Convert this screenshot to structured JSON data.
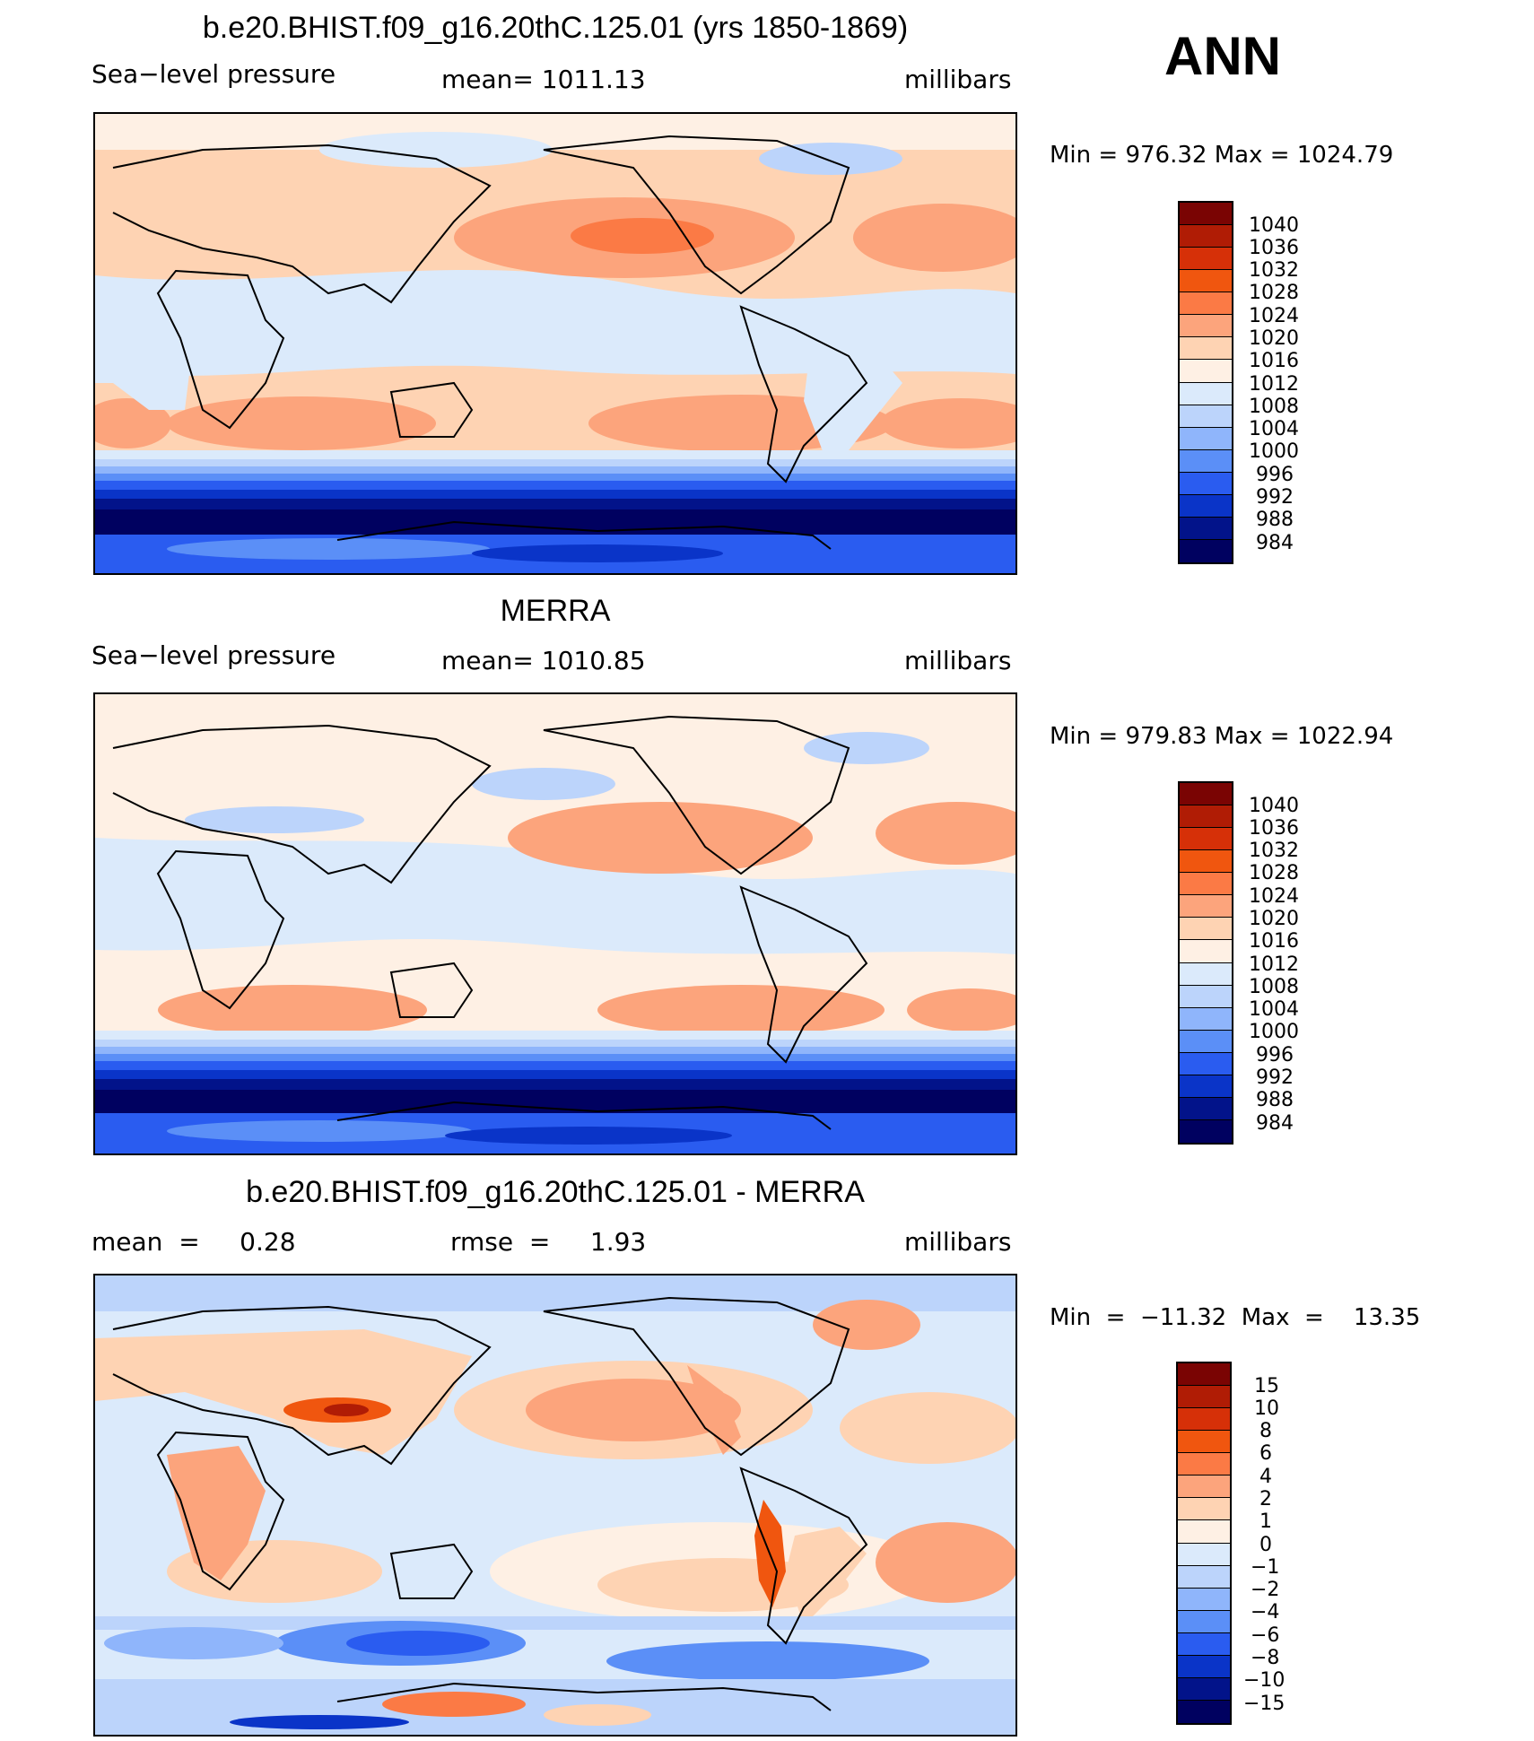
{
  "season": "ANN",
  "units": "millibars",
  "panels": [
    {
      "title": "b.e20.BHIST.f09_g16.20thC.125.01 (yrs 1850-1869)",
      "left_label": "Sea−level pressure",
      "center_label": "mean=  1011.13",
      "right_label": "millibars",
      "minmax": "Min  =  976.32  Max  =  1024.79",
      "colorbar_labels": [
        "1040",
        "1036",
        "1032",
        "1028",
        "1024",
        "1020",
        "1016",
        "1012",
        "1008",
        "1004",
        "1000",
        "996",
        "992",
        "988",
        "984"
      ]
    },
    {
      "title": "MERRA",
      "left_label": "Sea−level pressure",
      "center_label": "mean=  1010.85",
      "right_label": "millibars",
      "minmax": "Min  =  979.83  Max  =  1022.94",
      "colorbar_labels": [
        "1040",
        "1036",
        "1032",
        "1028",
        "1024",
        "1020",
        "1016",
        "1012",
        "1008",
        "1004",
        "1000",
        "996",
        "992",
        "988",
        "984"
      ]
    },
    {
      "title": "b.e20.BHIST.f09_g16.20thC.125.01 - MERRA",
      "left_label": "mean  =     0.28",
      "center_label": "rmse  =     1.93",
      "right_label": "millibars",
      "minmax": "Min  =  −11.32  Max  =    13.35",
      "colorbar_labels": [
        "15",
        "10",
        "8",
        "6",
        "4",
        "2",
        "1",
        "0",
        "−1",
        "−2",
        "−4",
        "−6",
        "−8",
        "−10",
        "−15"
      ]
    }
  ],
  "colors": {
    "levels_top_to_bottom": [
      "#7a0403",
      "#b01c05",
      "#d63008",
      "#f0560f",
      "#fb7a45",
      "#fca47c",
      "#fed3b3",
      "#fef0e4",
      "#dbeafb",
      "#bcd4fb",
      "#8fb5fb",
      "#5b8ff7",
      "#2a5cf0",
      "#0a34c8",
      "#02138a",
      "#000160"
    ]
  }
}
